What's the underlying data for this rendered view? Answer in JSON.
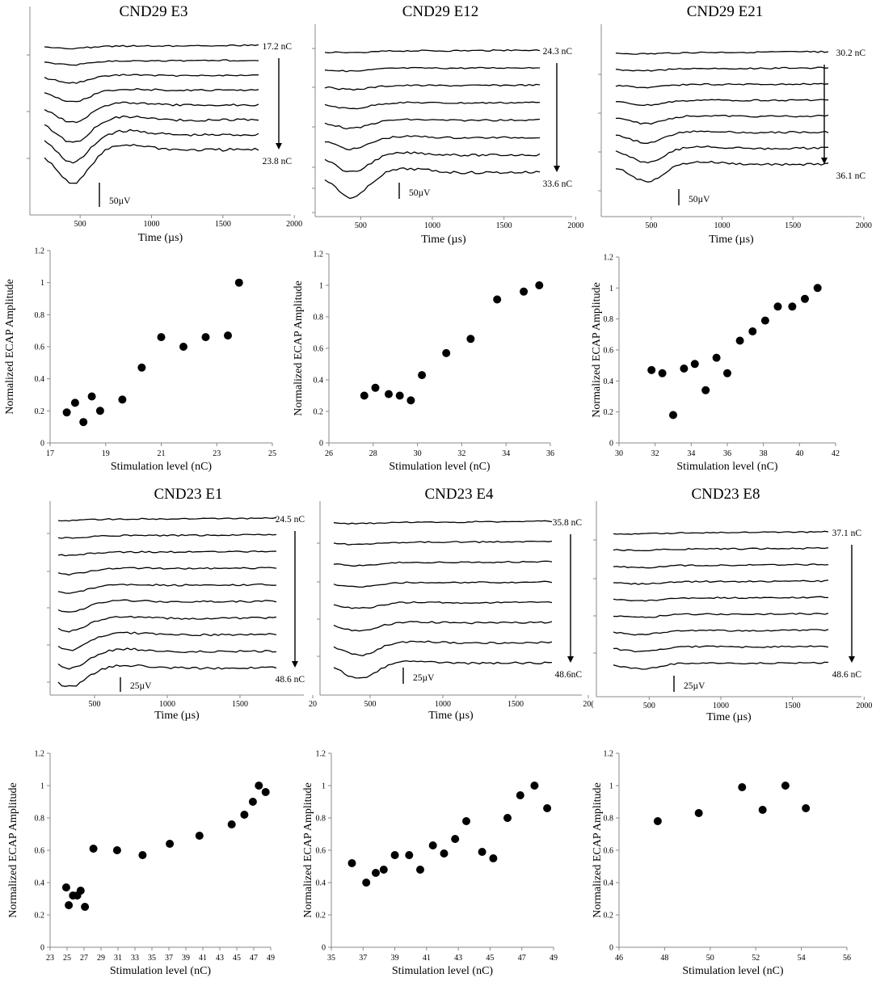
{
  "figure": {
    "description_hidden": false,
    "wave_time_axis_label": "Time (µs)",
    "scatter_x_axis_label": "Stimulation level (nC)",
    "scatter_y_axis_label": "Normalized ECAP Amplitude"
  },
  "chart_data": [
    {
      "id": "w1",
      "type": "line",
      "title": "CND29 E3",
      "xlabel": "Time (µs)",
      "xlim": [
        250,
        2000
      ],
      "x_ticks": [
        "500",
        "1000",
        "1500",
        "2000"
      ],
      "stim_start": "17.2 nC",
      "stim_end": "23.8 nC",
      "scale_bar": "50µV",
      "trace_count": 8,
      "peak_time": 450,
      "dip_depths": [
        2,
        4,
        8,
        13,
        20,
        27,
        33,
        40
      ]
    },
    {
      "id": "w2",
      "type": "line",
      "title": "CND29 E12",
      "xlabel": "Time (µs)",
      "xlim": [
        250,
        2000
      ],
      "x_ticks": [
        "500",
        "1000",
        "1500",
        "2000"
      ],
      "stim_start": "24.3 nC",
      "stim_end": "33.6 nC",
      "scale_bar": "50µV",
      "trace_count": 8,
      "peak_time": 440,
      "dip_depths": [
        2,
        3,
        4,
        6,
        9,
        13,
        20,
        30
      ]
    },
    {
      "id": "w3",
      "type": "line",
      "title": "CND29 E21",
      "xlabel": "Time (µs)",
      "xlim": [
        250,
        2000
      ],
      "x_ticks": [
        "500",
        "1000",
        "1500",
        "2000"
      ],
      "stim_start": "30.2 nC",
      "stim_end": "36.1 nC",
      "scale_bar": "50µV",
      "trace_count": 8,
      "peak_time": 470,
      "dip_depths": [
        1,
        2,
        3,
        5,
        8,
        12,
        16,
        20
      ]
    },
    {
      "id": "s1",
      "type": "scatter",
      "xlabel": "Stimulation level (nC)",
      "ylabel": "Normalized ECAP Amplitude",
      "xlim": [
        17,
        25
      ],
      "ylim": [
        0,
        1.2
      ],
      "x_ticks": [
        "17",
        "19",
        "21",
        "23",
        "25"
      ],
      "y_ticks": [
        "0",
        "0.2",
        "0.4",
        "0.6",
        "0.8",
        "1",
        "1.2"
      ],
      "x": [
        17.6,
        17.9,
        18.2,
        18.5,
        18.8,
        19.6,
        20.3,
        21.0,
        21.8,
        22.6,
        23.4,
        23.8
      ],
      "y": [
        0.19,
        0.25,
        0.13,
        0.29,
        0.2,
        0.27,
        0.47,
        0.66,
        0.6,
        0.66,
        0.67,
        1.0
      ]
    },
    {
      "id": "s2",
      "type": "scatter",
      "xlabel": "Stimulation level (nC)",
      "ylabel": "Normalized ECAP Amplitude",
      "xlim": [
        26,
        36
      ],
      "ylim": [
        0,
        1.2
      ],
      "x_ticks": [
        "26",
        "28",
        "30",
        "32",
        "34",
        "36"
      ],
      "y_ticks": [
        "0",
        "0.2",
        "0.4",
        "0.6",
        "0.8",
        "1",
        "1.2"
      ],
      "x": [
        27.6,
        28.1,
        28.7,
        29.2,
        29.7,
        30.2,
        31.3,
        32.4,
        33.6,
        34.8,
        35.5
      ],
      "y": [
        0.3,
        0.35,
        0.31,
        0.3,
        0.27,
        0.43,
        0.57,
        0.66,
        0.91,
        0.96,
        1.0
      ]
    },
    {
      "id": "s3",
      "type": "scatter",
      "xlabel": "Stimulation level (nC)",
      "ylabel": "Normalized ECAP Amplitude",
      "xlim": [
        30,
        42
      ],
      "ylim": [
        0,
        1.2
      ],
      "x_ticks": [
        "30",
        "32",
        "34",
        "36",
        "38",
        "40",
        "42"
      ],
      "y_ticks": [
        "0",
        "0.2",
        "0.4",
        "0.6",
        "0.8",
        "1",
        "1.2"
      ],
      "x": [
        31.8,
        32.4,
        33.0,
        33.6,
        34.2,
        34.8,
        35.4,
        36.0,
        36.7,
        37.4,
        38.1,
        38.8,
        39.6,
        40.3,
        41.0
      ],
      "y": [
        0.47,
        0.45,
        0.18,
        0.48,
        0.51,
        0.34,
        0.55,
        0.45,
        0.66,
        0.72,
        0.79,
        0.88,
        0.88,
        0.93,
        1.0
      ]
    },
    {
      "id": "w4",
      "type": "line",
      "title": "CND23 E1",
      "xlabel": "Time (µs)",
      "xlim": [
        250,
        2000
      ],
      "x_ticks": [
        "500",
        "1000",
        "1500",
        "20"
      ],
      "stim_start": "24.5 nC",
      "stim_end": "48.6 nC",
      "scale_bar": "25µV",
      "trace_count": 10,
      "peak_time": 330,
      "dip_depths": [
        1,
        2,
        3,
        6,
        9,
        12,
        15,
        18,
        20,
        22
      ]
    },
    {
      "id": "w5",
      "type": "line",
      "title": "CND23 E4",
      "xlabel": "Time (µs)",
      "xlim": [
        250,
        2000
      ],
      "x_ticks": [
        "500",
        "1000",
        "1500",
        "20("
      ],
      "stim_start": "35.8 nC",
      "stim_end": "48.6nC",
      "scale_bar": "25µV",
      "trace_count": 8,
      "peak_time": 430,
      "dip_depths": [
        1,
        2,
        3,
        4,
        6,
        9,
        14,
        18
      ]
    },
    {
      "id": "w6",
      "type": "line",
      "title": "CND23 E8",
      "xlabel": "Time (µs)",
      "xlim": [
        250,
        2000
      ],
      "x_ticks": [
        "500",
        "1000",
        "1500",
        "2000"
      ],
      "stim_start": "37.1 nC",
      "stim_end": "48.6 nC",
      "scale_bar": "25µV",
      "trace_count": 9,
      "peak_time": 450,
      "dip_depths": [
        1,
        1,
        2,
        2,
        3,
        3,
        4,
        5,
        6
      ]
    },
    {
      "id": "s4",
      "type": "scatter",
      "xlabel": "Stimulation level (nC)",
      "ylabel": "Normalized ECAP Amplitude",
      "xlim": [
        23,
        49
      ],
      "ylim": [
        0,
        1.2
      ],
      "x_ticks": [
        "23",
        "25",
        "27",
        "29",
        "31",
        "33",
        "35",
        "37",
        "39",
        "41",
        "43",
        "45",
        "47",
        "49"
      ],
      "y_ticks": [
        "0",
        "0.2",
        "0.4",
        "0.6",
        "0.8",
        "1",
        "1.2"
      ],
      "x": [
        24.9,
        25.2,
        25.7,
        26.2,
        26.6,
        27.1,
        28.1,
        30.9,
        33.9,
        37.1,
        40.6,
        44.4,
        45.9,
        46.9,
        47.6,
        48.4
      ],
      "y": [
        0.37,
        0.26,
        0.32,
        0.32,
        0.35,
        0.25,
        0.61,
        0.6,
        0.57,
        0.64,
        0.69,
        0.76,
        0.82,
        0.9,
        1.0,
        0.96
      ]
    },
    {
      "id": "s5",
      "type": "scatter",
      "xlabel": "Stimulation level (nC)",
      "ylabel": "Normalized ECAP Amplitude",
      "xlim": [
        35,
        49
      ],
      "ylim": [
        0,
        1.2
      ],
      "x_ticks": [
        "35",
        "37",
        "39",
        "41",
        "43",
        "45",
        "47",
        "49"
      ],
      "y_ticks": [
        "0",
        "0.2",
        "0.4",
        "0.6",
        "0.8",
        "1",
        "1.2"
      ],
      "x": [
        36.3,
        37.2,
        37.8,
        38.3,
        39.0,
        39.9,
        40.6,
        41.4,
        42.1,
        42.8,
        43.5,
        44.5,
        45.2,
        46.1,
        46.9,
        47.8,
        48.6
      ],
      "y": [
        0.52,
        0.4,
        0.46,
        0.48,
        0.57,
        0.57,
        0.48,
        0.63,
        0.58,
        0.67,
        0.78,
        0.59,
        0.55,
        0.8,
        0.94,
        1.0,
        0.86
      ]
    },
    {
      "id": "s6",
      "type": "scatter",
      "xlabel": "Stimulation level (nC)",
      "ylabel": "Normalized ECAP Amplitude",
      "xlim": [
        46,
        56
      ],
      "ylim": [
        0,
        1.2
      ],
      "x_ticks": [
        "46",
        "48",
        "50",
        "52",
        "54",
        "56"
      ],
      "y_ticks": [
        "0",
        "0.2",
        "0.4",
        "0.6",
        "0.8",
        "1",
        "1.2"
      ],
      "x": [
        47.7,
        49.5,
        51.4,
        52.3,
        53.3,
        54.2
      ],
      "y": [
        0.78,
        0.83,
        0.99,
        0.85,
        1.0,
        0.86
      ]
    }
  ]
}
